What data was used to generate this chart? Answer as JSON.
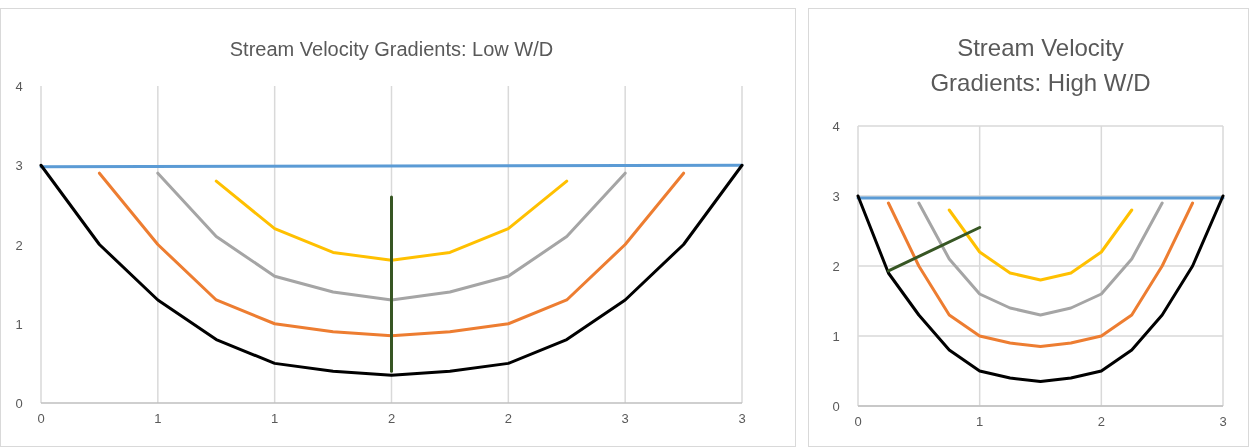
{
  "chart_data": [
    {
      "type": "line",
      "title": "Stream Velocity Gradients: Low W/D",
      "xlim": [
        0,
        3
      ],
      "ylim": [
        0,
        4
      ],
      "yticks": [
        0,
        1,
        2,
        3,
        4
      ],
      "xticks": [
        0,
        {
          "value": 0.5,
          "label": "1"
        },
        {
          "value": 1,
          "label": "1"
        },
        {
          "value": 1.5,
          "label": "2"
        },
        {
          "value": 2,
          "label": "2"
        },
        {
          "value": 2.5,
          "label": "3"
        },
        {
          "value": 3,
          "label": "3"
        }
      ],
      "grid": "x",
      "marker": "none",
      "line_style": "solid",
      "series": [
        {
          "color": "#5b9bd5",
          "x": [
            0,
            3
          ],
          "values": [
            2.98,
            3
          ]
        },
        {
          "color": "#000000",
          "x": [
            0,
            0.25,
            0.5,
            0.75,
            1,
            1.25,
            1.5,
            1.75,
            2,
            2.25,
            2.5,
            2.75,
            3
          ],
          "values": [
            3,
            2,
            1.3,
            0.8,
            0.5,
            0.4,
            0.35,
            0.4,
            0.5,
            0.8,
            1.3,
            2,
            3
          ]
        },
        {
          "color": "#ed7d31",
          "x": [
            0.25,
            0.5,
            0.75,
            1,
            1.25,
            1.5,
            1.75,
            2,
            2.25,
            2.5,
            2.75
          ],
          "values": [
            2.9,
            2,
            1.3,
            1,
            0.9,
            0.85,
            0.9,
            1,
            1.3,
            2,
            2.9
          ]
        },
        {
          "color": "#a5a5a5",
          "x": [
            0.5,
            0.75,
            1,
            1.25,
            1.5,
            1.75,
            2,
            2.25,
            2.5
          ],
          "values": [
            2.9,
            2.1,
            1.6,
            1.4,
            1.3,
            1.4,
            1.6,
            2.1,
            2.9
          ]
        },
        {
          "color": "#ffc000",
          "x": [
            0.75,
            1,
            1.25,
            1.5,
            1.75,
            2,
            2.25
          ],
          "values": [
            2.8,
            2.2,
            1.9,
            1.8,
            1.9,
            2.2,
            2.8
          ]
        },
        {
          "color": "#375623",
          "x": [
            1.5,
            1.5
          ],
          "values": [
            0.4,
            2.6
          ]
        }
      ]
    },
    {
      "type": "line",
      "title": "Stream Velocity Gradients: High W/D",
      "xlim": [
        0,
        3
      ],
      "ylim": [
        0,
        4
      ],
      "yticks": [
        0,
        1,
        2,
        3,
        4
      ],
      "xticks": [
        0,
        1,
        2,
        3
      ],
      "grid": true,
      "marker": "none",
      "line_style": "solid",
      "series": [
        {
          "color": "#5b9bd5",
          "x": [
            0,
            3
          ],
          "values": [
            2.97,
            2.97
          ]
        },
        {
          "color": "#000000",
          "x": [
            0,
            0.25,
            0.5,
            0.75,
            1,
            1.25,
            1.5,
            1.75,
            2,
            2.25,
            2.5,
            2.75,
            3
          ],
          "values": [
            3,
            1.9,
            1.3,
            0.8,
            0.5,
            0.4,
            0.35,
            0.4,
            0.5,
            0.8,
            1.3,
            2,
            3
          ]
        },
        {
          "color": "#ed7d31",
          "x": [
            0.25,
            0.5,
            0.75,
            1,
            1.25,
            1.5,
            1.75,
            2,
            2.25,
            2.5,
            2.75
          ],
          "values": [
            2.9,
            2,
            1.3,
            1,
            0.9,
            0.85,
            0.9,
            1,
            1.3,
            2,
            2.9
          ]
        },
        {
          "color": "#a5a5a5",
          "x": [
            0.5,
            0.75,
            1,
            1.25,
            1.5,
            1.75,
            2,
            2.25,
            2.5
          ],
          "values": [
            2.9,
            2.1,
            1.6,
            1.4,
            1.3,
            1.4,
            1.6,
            2.1,
            2.9
          ]
        },
        {
          "color": "#ffc000",
          "x": [
            0.75,
            1,
            1.25,
            1.5,
            1.75,
            2,
            2.25
          ],
          "values": [
            2.8,
            2.2,
            1.9,
            1.8,
            1.9,
            2.2,
            2.8
          ]
        },
        {
          "color": "#375623",
          "x": [
            0.25,
            1
          ],
          "values": [
            1.93,
            2.55
          ]
        }
      ]
    }
  ]
}
